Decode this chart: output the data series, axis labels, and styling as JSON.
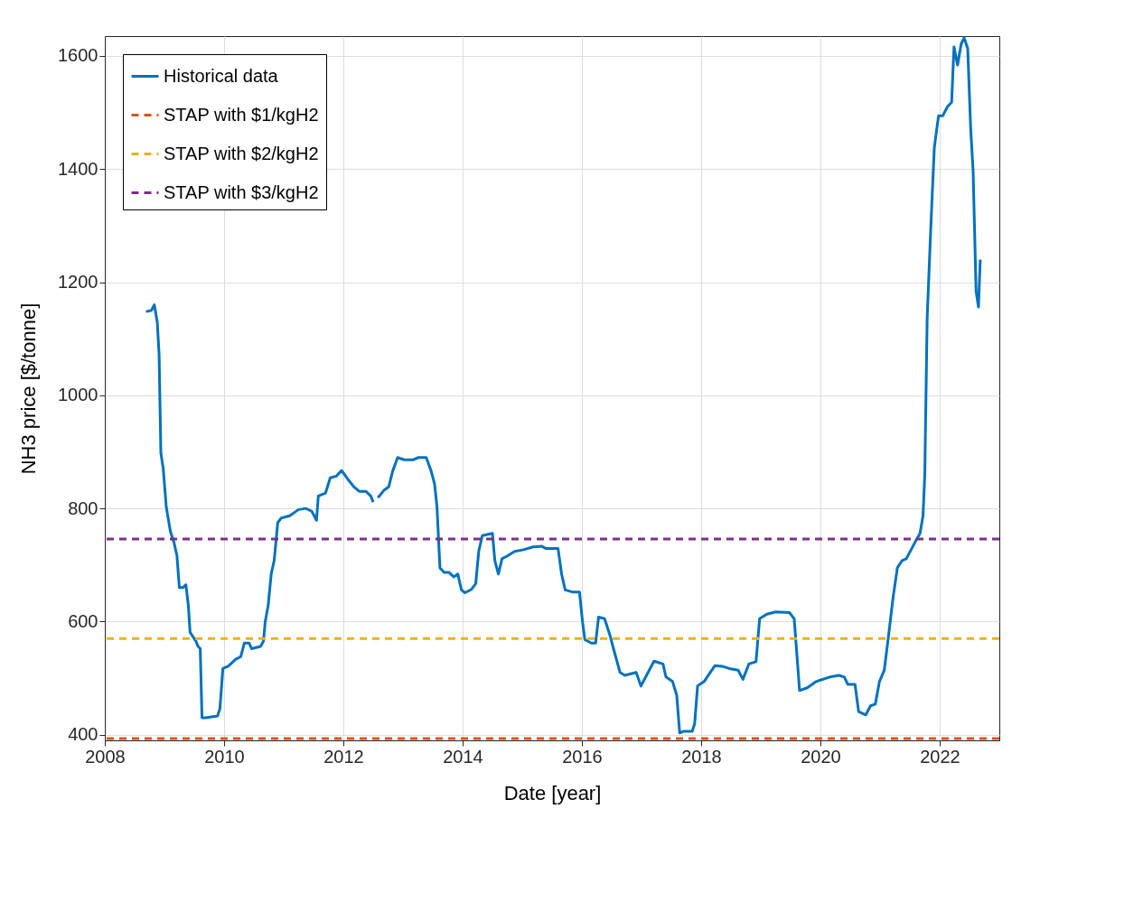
{
  "chart_data": {
    "type": "line",
    "xlabel": "Date [year]",
    "ylabel": "NH3 price [$/tonne]",
    "xlim": [
      2008,
      2023
    ],
    "xticks": [
      2008,
      2010,
      2012,
      2014,
      2016,
      2018,
      2020,
      2022
    ],
    "ylim": [
      390,
      1635
    ],
    "yticks": [
      400,
      600,
      800,
      1000,
      1200,
      1400,
      1600
    ],
    "grid": true,
    "legend": "top left",
    "line_style": "solid",
    "marker": "none",
    "series": [
      {
        "name": "Historical data",
        "color": "#0072bd",
        "x": [
          2008.69,
          2008.78,
          2008.83,
          2008.88,
          2008.91,
          2008.94,
          2008.98,
          2009.03,
          2009.1,
          2009.16,
          2009.21,
          2009.25,
          2009.31,
          2009.36,
          2009.4,
          2009.43,
          2009.48,
          2009.53,
          2009.56,
          2009.6,
          2009.63,
          2009.69,
          2009.89,
          2009.93,
          2009.98,
          2010.07,
          2010.19,
          2010.28,
          2010.34,
          2010.42,
          2010.46,
          2010.61,
          2010.66,
          2010.69,
          2010.74,
          2010.79,
          2010.84,
          2010.9,
          2010.96,
          2011.1,
          2011.25,
          2011.37,
          2011.47,
          2011.55,
          2011.58,
          2011.7,
          2011.78,
          2011.88,
          2011.97,
          2012.08,
          2012.18,
          2012.27,
          2012.38,
          2012.46,
          2012.5,
          2012.54,
          2012.58,
          2012.68,
          2012.76,
          2012.83,
          2012.91,
          2013.02,
          2013.17,
          2013.26,
          2013.39,
          2013.47,
          2013.53,
          2013.57,
          2013.62,
          2013.69,
          2013.77,
          2013.85,
          2013.92,
          2013.98,
          2014.04,
          2014.15,
          2014.22,
          2014.27,
          2014.33,
          2014.5,
          2014.54,
          2014.6,
          2014.66,
          2014.75,
          2014.87,
          2015.02,
          2015.18,
          2015.33,
          2015.4,
          2015.6,
          2015.66,
          2015.72,
          2015.85,
          2015.96,
          2016.01,
          2016.05,
          2016.16,
          2016.23,
          2016.28,
          2016.38,
          2016.47,
          2016.53,
          2016.64,
          2016.72,
          2016.91,
          2016.99,
          2017.11,
          2017.21,
          2017.36,
          2017.41,
          2017.52,
          2017.59,
          2017.64,
          2017.71,
          2017.85,
          2017.89,
          2017.94,
          2018.05,
          2018.12,
          2018.23,
          2018.35,
          2018.47,
          2018.62,
          2018.7,
          2018.8,
          2018.92,
          2018.98,
          2019.1,
          2019.25,
          2019.48,
          2019.56,
          2019.6,
          2019.65,
          2019.78,
          2019.93,
          2020.01,
          2020.16,
          2020.31,
          2020.4,
          2020.46,
          2020.58,
          2020.64,
          2020.76,
          2020.84,
          2020.92,
          2020.99,
          2021.07,
          2021.14,
          2021.22,
          2021.29,
          2021.37,
          2021.44,
          2021.52,
          2021.6,
          2021.67,
          2021.72,
          2021.75,
          2021.79,
          2021.85,
          2021.91,
          2021.98,
          2022.05,
          2022.13,
          2022.2,
          2022.24,
          2022.3,
          2022.36,
          2022.41,
          2022.47,
          2022.52,
          2022.56,
          2022.61,
          2022.65,
          2022.68
        ],
        "values": [
          1148,
          1150,
          1160,
          1129,
          1073,
          898,
          870,
          803,
          759,
          740,
          716,
          660,
          660,
          665,
          629,
          581,
          573,
          565,
          557,
          552,
          430,
          430,
          433,
          446,
          517,
          521,
          533,
          538,
          562,
          562,
          552,
          556,
          565,
          600,
          629,
          684,
          708,
          775,
          783,
          787,
          798,
          800,
          795,
          779,
          822,
          827,
          854,
          857,
          867,
          851,
          838,
          830,
          830,
          822,
          811,
          null,
          819,
          832,
          838,
          867,
          890,
          886,
          886,
          890,
          890,
          867,
          843,
          803,
          695,
          687,
          687,
          679,
          684,
          656,
          651,
          657,
          667,
          724,
          752,
          756,
          708,
          684,
          711,
          716,
          724,
          727,
          732,
          733,
          729,
          729,
          684,
          656,
          652,
          652,
          600,
          568,
          562,
          562,
          608,
          605,
          576,
          552,
          510,
          505,
          510,
          486,
          510,
          530,
          525,
          502,
          494,
          470,
          403,
          406,
          406,
          419,
          486,
          494,
          505,
          522,
          521,
          517,
          514,
          498,
          525,
          529,
          605,
          613,
          617,
          616,
          605,
          549,
          478,
          483,
          494,
          497,
          502,
          505,
          502,
          489,
          489,
          441,
          435,
          451,
          454,
          494,
          514,
          573,
          644,
          695,
          708,
          711,
          727,
          743,
          756,
          787,
          859,
          1137,
          1295,
          1438,
          1494,
          1494,
          1510,
          1518,
          1616,
          1584,
          1621,
          1632,
          1613,
          1470,
          1398,
          1184,
          1156,
          1240
        ]
      }
    ],
    "ref_lines": [
      {
        "axis": "y",
        "value": 393,
        "label": "STAP with $1/kgH2",
        "color": "#d95319",
        "line_style": "dashed"
      },
      {
        "axis": "y",
        "value": 570,
        "label": "STAP with $2/kgH2",
        "color": "#edb120",
        "line_style": "dashed"
      },
      {
        "axis": "y",
        "value": 746,
        "label": "STAP with $3/kgH2",
        "color": "#7e2f8e",
        "line_style": "dashed"
      }
    ]
  }
}
